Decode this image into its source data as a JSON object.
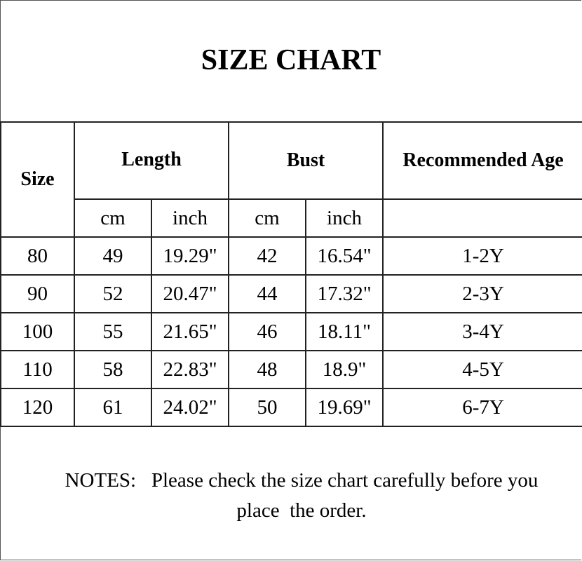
{
  "title": "SIZE CHART",
  "headers": {
    "size": "Size",
    "length": "Length",
    "bust": "Bust",
    "age": "Recommended Age",
    "units": [
      "cm",
      "inch",
      "cm",
      "inch"
    ]
  },
  "rows": [
    {
      "size": "80",
      "length_cm": "49",
      "length_in": "19.29\"",
      "bust_cm": "42",
      "bust_in": "16.54\"",
      "age": "1-2Y"
    },
    {
      "size": "90",
      "length_cm": "52",
      "length_in": "20.47\"",
      "bust_cm": "44",
      "bust_in": "17.32\"",
      "age": "2-3Y"
    },
    {
      "size": "100",
      "length_cm": "55",
      "length_in": "21.65\"",
      "bust_cm": "46",
      "bust_in": "18.11\"",
      "age": "3-4Y"
    },
    {
      "size": "110",
      "length_cm": "58",
      "length_in": "22.83\"",
      "bust_cm": "48",
      "bust_in": "18.9\"",
      "age": "4-5Y"
    },
    {
      "size": "120",
      "length_cm": "61",
      "length_in": "24.02\"",
      "bust_cm": "50",
      "bust_in": "19.69\"",
      "age": "6-7Y"
    }
  ],
  "notes": {
    "line1": "NOTES:   Please check the size chart carefully before you",
    "line2": "place  the order."
  }
}
